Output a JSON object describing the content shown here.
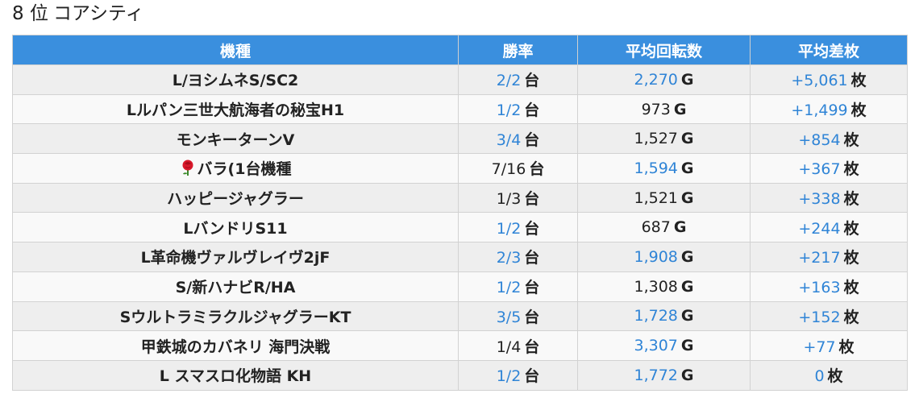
{
  "heading": {
    "rank": "8 位",
    "store": "コアシティ"
  },
  "columns": [
    "機種",
    "勝率",
    "平均回転数",
    "平均差枚"
  ],
  "units": {
    "win": "台",
    "spins": "G",
    "diff": "枚"
  },
  "rows": [
    {
      "machine": "L/ヨシムネS/SC2",
      "win": "2/2",
      "win_hl": true,
      "spins": "2,270",
      "spins_hl": true,
      "diff": "+5,061",
      "diff_hl": true
    },
    {
      "machine": "Lルパン三世大航海者の秘宝H1",
      "win": "1/2",
      "win_hl": true,
      "spins": "973",
      "spins_hl": false,
      "diff": "+1,499",
      "diff_hl": true
    },
    {
      "machine": "モンキーターンV",
      "win": "3/4",
      "win_hl": true,
      "spins": "1,527",
      "spins_hl": false,
      "diff": "+854",
      "diff_hl": true
    },
    {
      "machine": "バラ(1台機種",
      "icon": "rose-icon",
      "win": "7/16",
      "win_hl": false,
      "spins": "1,594",
      "spins_hl": true,
      "diff": "+367",
      "diff_hl": true
    },
    {
      "machine": "ハッピージャグラー",
      "win": "1/3",
      "win_hl": false,
      "spins": "1,521",
      "spins_hl": false,
      "diff": "+338",
      "diff_hl": true
    },
    {
      "machine": "LバンドリS11",
      "win": "1/2",
      "win_hl": true,
      "spins": "687",
      "spins_hl": false,
      "diff": "+244",
      "diff_hl": true
    },
    {
      "machine": "L革命機ヴァルヴレイヴ2jF",
      "win": "2/3",
      "win_hl": true,
      "spins": "1,908",
      "spins_hl": true,
      "diff": "+217",
      "diff_hl": true
    },
    {
      "machine": "S/新ハナビR/HA",
      "win": "1/2",
      "win_hl": true,
      "spins": "1,308",
      "spins_hl": false,
      "diff": "+163",
      "diff_hl": true
    },
    {
      "machine": "SウルトラミラクルジャグラーKT",
      "win": "3/5",
      "win_hl": true,
      "spins": "1,728",
      "spins_hl": true,
      "diff": "+152",
      "diff_hl": true
    },
    {
      "machine": "甲鉄城のカバネリ 海門決戦",
      "win": "1/4",
      "win_hl": false,
      "spins": "3,307",
      "spins_hl": true,
      "diff": "+77",
      "diff_hl": true
    },
    {
      "machine": "L スマスロ化物語 KH",
      "win": "1/2",
      "win_hl": true,
      "spins": "1,772",
      "spins_hl": true,
      "diff": "0",
      "diff_hl": true
    }
  ]
}
